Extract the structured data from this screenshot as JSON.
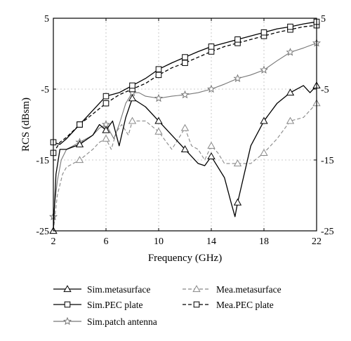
{
  "chart_data": {
    "type": "line",
    "xlabel": "Frequency (GHz)",
    "ylabel": "RCS (dBsm)",
    "xlim": [
      2,
      22
    ],
    "ylim": [
      -25,
      5
    ],
    "xticks": [
      2,
      6,
      10,
      14,
      18,
      22
    ],
    "yticks": [
      -25,
      -15,
      -5,
      5
    ],
    "grid": true,
    "legend_position": "below",
    "series": [
      {
        "name": "Sim.metasurface",
        "color": "#000000",
        "dash": "solid",
        "marker": "triangle",
        "x": [
          2.0,
          2.2,
          2.5,
          3.0,
          4.0,
          5.0,
          5.5,
          6.0,
          6.5,
          7.0,
          7.5,
          8.0,
          9.0,
          10.0,
          11.0,
          12.0,
          13.0,
          13.5,
          14.0,
          15.0,
          15.5,
          15.8,
          16.0,
          16.5,
          17.0,
          18.0,
          19.0,
          20.0,
          21.0,
          21.5,
          22.0
        ],
        "y": [
          -25.0,
          -17.0,
          -13.5,
          -13.5,
          -12.8,
          -11.5,
          -10.0,
          -10.8,
          -9.5,
          -13.0,
          -9.0,
          -6.3,
          -7.5,
          -9.5,
          -11.5,
          -13.5,
          -15.5,
          -15.8,
          -14.5,
          -17.5,
          -21.0,
          -23.0,
          -21.0,
          -17.0,
          -13.0,
          -9.5,
          -7.0,
          -5.5,
          -4.5,
          -5.5,
          -4.5
        ]
      },
      {
        "name": "Sim.PEC plate",
        "color": "#000000",
        "dash": "solid",
        "marker": "square",
        "x": [
          2,
          2.5,
          3,
          4,
          5,
          6,
          7,
          8,
          9,
          10,
          11,
          12,
          13,
          14,
          15,
          16,
          17,
          18,
          19,
          20,
          21,
          22
        ],
        "y": [
          -12.5,
          -12.8,
          -12.0,
          -10.0,
          -8.0,
          -6.0,
          -5.5,
          -4.5,
          -3.5,
          -2.2,
          -1.3,
          -0.5,
          0.3,
          1.0,
          1.5,
          2.0,
          2.5,
          3.0,
          3.5,
          3.8,
          4.2,
          4.5
        ]
      },
      {
        "name": "Sim.patch antenna",
        "color": "#777777",
        "dash": "solid",
        "marker": "star",
        "x": [
          2.0,
          2.3,
          2.6,
          3.0,
          4.0,
          5.0,
          5.5,
          6.0,
          6.3,
          6.6,
          7.0,
          7.5,
          8.0,
          8.5,
          9.0,
          10.0,
          11.0,
          12.0,
          13.0,
          14.0,
          15.0,
          16.0,
          17.0,
          18.0,
          19.0,
          20.0,
          21.0,
          22.0
        ],
        "y": [
          -23.0,
          -18.0,
          -15.0,
          -13.5,
          -12.5,
          -11.5,
          -10.5,
          -10.0,
          -11.0,
          -12.0,
          -10.0,
          -7.0,
          -5.5,
          -5.5,
          -6.0,
          -6.3,
          -6.0,
          -5.8,
          -5.5,
          -5.0,
          -4.3,
          -3.5,
          -3.0,
          -2.3,
          -1.0,
          0.2,
          0.8,
          1.5
        ]
      },
      {
        "name": "Mea.metasurface",
        "color": "#888888",
        "dash": "dashed",
        "marker": "triangle",
        "x": [
          2.0,
          2.3,
          2.7,
          3.0,
          4.0,
          5.0,
          5.5,
          6.0,
          6.4,
          6.8,
          7.2,
          7.7,
          8.0,
          9.0,
          10.0,
          11.0,
          12.0,
          12.5,
          13.0,
          13.5,
          14.0,
          14.5,
          15.0,
          16.0,
          17.0,
          18.0,
          19.0,
          20.0,
          21.0,
          22.0
        ],
        "y": [
          -25.0,
          -20.0,
          -17.0,
          -16.0,
          -15.0,
          -13.5,
          -12.5,
          -12.0,
          -13.5,
          -11.0,
          -10.0,
          -11.5,
          -9.5,
          -9.5,
          -11.0,
          -13.5,
          -10.5,
          -13.0,
          -13.5,
          -15.0,
          -13.0,
          -14.0,
          -15.5,
          -15.5,
          -15.5,
          -14.0,
          -12.0,
          -9.5,
          -9.0,
          -7.0
        ]
      },
      {
        "name": "Mea.PEC plate",
        "color": "#000000",
        "dash": "dashed",
        "marker": "square",
        "x": [
          2,
          2.5,
          3,
          4,
          5,
          6,
          7,
          8,
          9,
          10,
          11,
          12,
          13,
          14,
          15,
          16,
          17,
          18,
          19,
          20,
          21,
          22
        ],
        "y": [
          -14.0,
          -12.5,
          -11.8,
          -10.0,
          -8.5,
          -7.0,
          -5.8,
          -5.0,
          -4.2,
          -3.0,
          -2.0,
          -1.3,
          -0.5,
          0.3,
          1.0,
          1.5,
          2.0,
          2.5,
          3.0,
          3.4,
          3.8,
          4.0
        ]
      }
    ]
  }
}
